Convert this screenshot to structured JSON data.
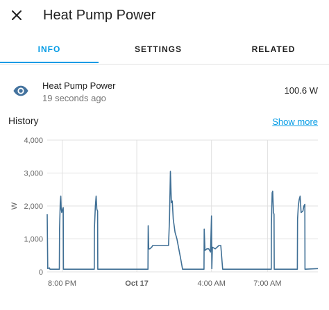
{
  "dialog": {
    "title": "Heat Pump Power",
    "close_icon": "close-icon"
  },
  "tabs": [
    {
      "label": "INFO",
      "active": true
    },
    {
      "label": "SETTINGS",
      "active": false
    },
    {
      "label": "RELATED",
      "active": false
    }
  ],
  "entity": {
    "icon": "eye-icon",
    "name": "Heat Pump Power",
    "last_changed": "19 seconds ago",
    "state": "100.6 W"
  },
  "history": {
    "title": "History",
    "show_more": "Show more"
  },
  "colors": {
    "accent": "#039be5",
    "line": "#3f6f95",
    "icon": "#44739e"
  },
  "chart_data": {
    "type": "line",
    "ylabel": "W",
    "ylim": [
      0,
      4000
    ],
    "yticks": [
      "0",
      "1,000",
      "2,000",
      "3,000",
      "4,000"
    ],
    "xrange_hours": [
      0,
      14.5
    ],
    "xticks": [
      {
        "label": "8:00 PM",
        "hour": 0.8
      },
      {
        "label": "Oct 17",
        "hour": 4.8
      },
      {
        "label": "4:00 AM",
        "hour": 8.8
      },
      {
        "label": "7:00 AM",
        "hour": 11.8
      }
    ],
    "series": [
      {
        "points": [
          [
            0.0,
            1750
          ],
          [
            0.03,
            100
          ],
          [
            0.12,
            120
          ],
          [
            0.15,
            80
          ],
          [
            0.65,
            80
          ],
          [
            0.66,
            1300
          ],
          [
            0.7,
            2100
          ],
          [
            0.73,
            2300
          ],
          [
            0.75,
            1900
          ],
          [
            0.78,
            1800
          ],
          [
            0.82,
            1900
          ],
          [
            0.86,
            1950
          ],
          [
            0.87,
            80
          ],
          [
            2.52,
            80
          ],
          [
            2.53,
            1300
          ],
          [
            2.58,
            2000
          ],
          [
            2.62,
            2300
          ],
          [
            2.66,
            1900
          ],
          [
            2.7,
            1850
          ],
          [
            2.71,
            80
          ],
          [
            5.4,
            80
          ],
          [
            5.41,
            1400
          ],
          [
            5.44,
            700
          ],
          [
            5.5,
            700
          ],
          [
            5.6,
            750
          ],
          [
            5.65,
            800
          ],
          [
            6.5,
            800
          ],
          [
            6.55,
            1600
          ],
          [
            6.6,
            3050
          ],
          [
            6.65,
            2100
          ],
          [
            6.7,
            2150
          ],
          [
            6.75,
            1600
          ],
          [
            6.85,
            1200
          ],
          [
            6.95,
            1000
          ],
          [
            7.05,
            700
          ],
          [
            7.15,
            400
          ],
          [
            7.25,
            80
          ],
          [
            8.4,
            80
          ],
          [
            8.41,
            1300
          ],
          [
            8.45,
            650
          ],
          [
            8.55,
            700
          ],
          [
            8.65,
            700
          ],
          [
            8.75,
            600
          ],
          [
            8.8,
            1700
          ],
          [
            8.82,
            100
          ],
          [
            8.85,
            750
          ],
          [
            9.0,
            700
          ],
          [
            9.1,
            750
          ],
          [
            9.2,
            800
          ],
          [
            9.3,
            800
          ],
          [
            9.4,
            80
          ],
          [
            12.0,
            80
          ],
          [
            12.01,
            1400
          ],
          [
            12.05,
            2400
          ],
          [
            12.08,
            2450
          ],
          [
            12.12,
            1800
          ],
          [
            12.15,
            1750
          ],
          [
            12.16,
            80
          ],
          [
            13.4,
            80
          ],
          [
            13.41,
            1600
          ],
          [
            13.45,
            2000
          ],
          [
            13.5,
            2200
          ],
          [
            13.55,
            2300
          ],
          [
            13.6,
            1800
          ],
          [
            13.7,
            1850
          ],
          [
            13.75,
            2000
          ],
          [
            13.8,
            2050
          ],
          [
            13.81,
            80
          ],
          [
            14.5,
            100
          ]
        ]
      }
    ]
  }
}
